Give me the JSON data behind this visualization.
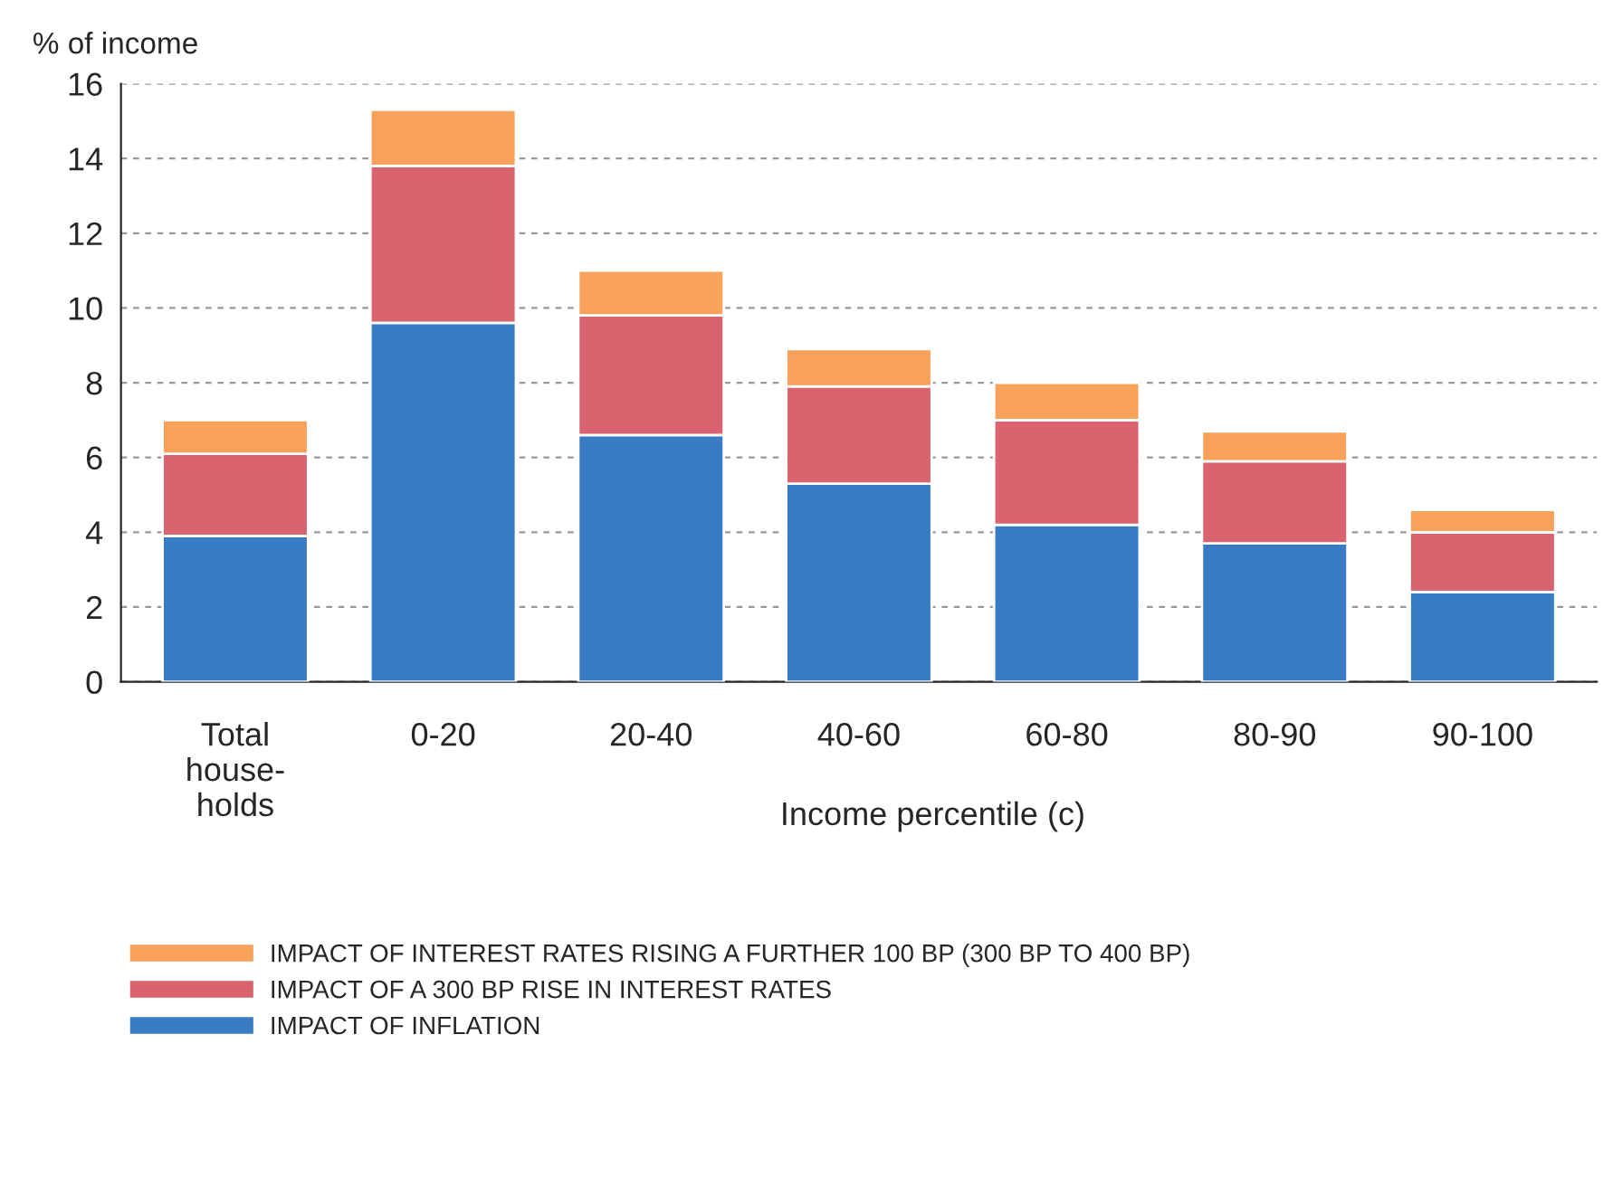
{
  "chart_data": {
    "type": "bar",
    "stacked": true,
    "ylabel": "% of income",
    "xlabel": "Income percentile (c)",
    "categories": [
      "Total\nhouse-\nholds",
      "0-20",
      "20-40",
      "40-60",
      "60-80",
      "80-90",
      "90-100"
    ],
    "series": [
      {
        "name": "IMPACT OF INFLATION",
        "color": "#3a7cc4",
        "values": [
          3.9,
          9.6,
          6.6,
          5.3,
          4.2,
          3.7,
          2.4
        ]
      },
      {
        "name": "IMPACT OF A 300 BP RISE IN INTEREST RATES",
        "color": "#d9636e",
        "values": [
          2.2,
          4.2,
          3.2,
          2.6,
          2.8,
          2.2,
          1.6
        ]
      },
      {
        "name": "IMPACT OF INTEREST RATES RISING A FURTHER 100 BP (300 BP TO 400 BP)",
        "color": "#f7a15a",
        "values": [
          0.9,
          1.5,
          1.2,
          1.0,
          1.0,
          0.8,
          0.6
        ]
      }
    ],
    "ylim": [
      0,
      16
    ],
    "yticks": [
      0,
      2,
      4,
      6,
      8,
      10,
      12,
      14,
      16
    ],
    "grid": "y",
    "legend": "bottom"
  }
}
